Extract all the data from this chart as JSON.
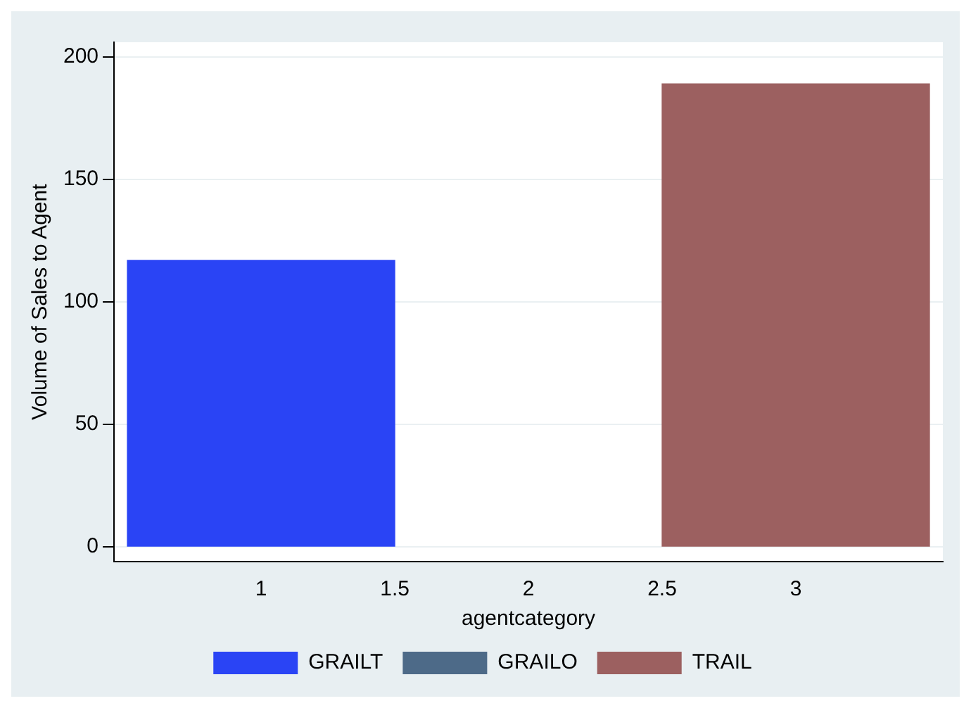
{
  "chart_data": {
    "type": "bar",
    "xlabel": "agentcategory",
    "ylabel": "Volume of Sales to Agent",
    "x": [
      1,
      2,
      3
    ],
    "series": [
      {
        "name": "GRAILT",
        "color": "#2a44f5",
        "values": [
          117,
          null,
          null
        ]
      },
      {
        "name": "GRAILO",
        "color": "#4d6a88",
        "values": [
          null,
          null,
          null
        ]
      },
      {
        "name": "TRAIL",
        "color": "#9c6060",
        "values": [
          null,
          null,
          189
        ]
      }
    ],
    "xlim": [
      0.45,
      3.55
    ],
    "xticks": [
      1,
      1.5,
      2,
      2.5,
      3
    ],
    "ylim": [
      -6,
      206
    ],
    "yticks": [
      0,
      50,
      100,
      150,
      200
    ],
    "grid": "y",
    "legend": "bottom"
  }
}
